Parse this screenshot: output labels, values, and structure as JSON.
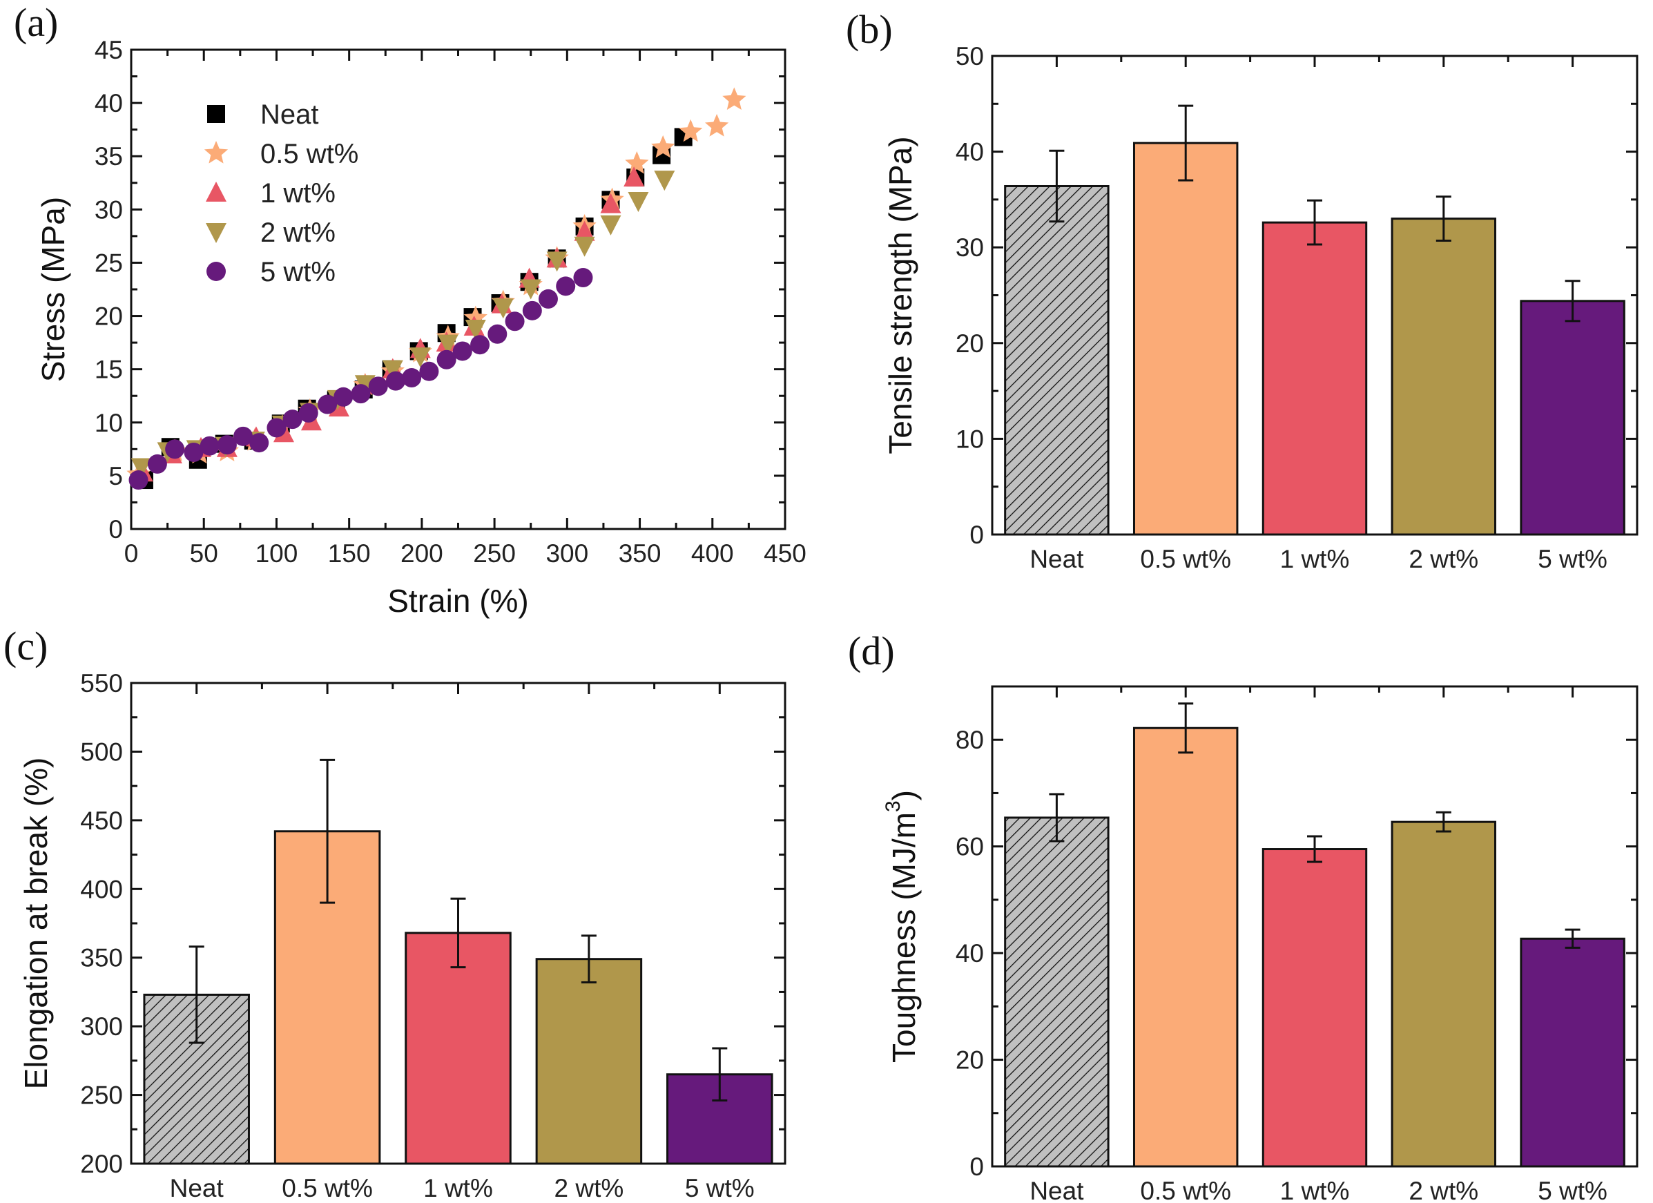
{
  "figure": {
    "colors": {
      "Neat": "#000000",
      "0.5 wt%": "#fbab77",
      "1 wt%": "#e85664",
      "2 wt%": "#b0974b",
      "5 wt%": "#661a7c",
      "neat_bar_fill": "#c0c0c0"
    }
  },
  "chart_data": [
    {
      "panel": "(a)",
      "type": "scatter",
      "title": "",
      "xlabel": "Strain (%)",
      "ylabel": "Stress (MPa)",
      "xlim": [
        0,
        450
      ],
      "ylim": [
        0,
        45
      ],
      "xticks": [
        0,
        50,
        100,
        150,
        200,
        250,
        300,
        350,
        400,
        450
      ],
      "yticks": [
        0,
        5,
        10,
        15,
        20,
        25,
        30,
        35,
        40,
        45
      ],
      "grid": false,
      "legend": "top-left",
      "series": [
        {
          "name": "Neat",
          "marker": "square",
          "x": [
            9,
            27,
            46,
            64,
            84,
            103,
            121,
            141,
            160,
            179,
            198,
            217,
            235,
            254,
            274,
            293,
            312,
            330,
            347,
            365,
            380
          ],
          "y": [
            4.6,
            7.7,
            6.5,
            8.0,
            8.3,
            9.9,
            11.3,
            12.1,
            13.1,
            15.0,
            16.7,
            18.4,
            19.9,
            21.2,
            23.2,
            25.4,
            28.4,
            30.9,
            33.0,
            35.1,
            36.8
          ]
        },
        {
          "name": "0.5 wt%",
          "marker": "star",
          "x": [
            5,
            30,
            47,
            66,
            85,
            104,
            123,
            142,
            161,
            180,
            199,
            218,
            237,
            256,
            275,
            293,
            312,
            331,
            348,
            366,
            385,
            403,
            415
          ],
          "y": [
            5.1,
            7.3,
            7.1,
            7.3,
            8.3,
            9.6,
            11.1,
            11.9,
            13.5,
            14.8,
            16.6,
            18.0,
            19.8,
            21.3,
            22.9,
            25.4,
            28.4,
            30.9,
            34.3,
            35.8,
            37.3,
            37.8,
            40.3
          ]
        },
        {
          "name": "1 wt%",
          "marker": "triangle-up",
          "x": [
            8,
            28,
            48,
            66,
            86,
            105,
            124,
            143,
            161,
            180,
            199,
            217,
            236,
            255,
            274,
            293,
            312,
            330,
            346
          ],
          "y": [
            5.3,
            7.0,
            7.6,
            7.6,
            8.6,
            9.0,
            10.1,
            11.4,
            13.5,
            15.0,
            16.9,
            17.5,
            19.0,
            21.1,
            23.5,
            25.4,
            27.9,
            30.5,
            33.0
          ]
        },
        {
          "name": "2 wt%",
          "marker": "triangle-down",
          "x": [
            7,
            25,
            45,
            65,
            85,
            104,
            123,
            142,
            161,
            180,
            199,
            218,
            237,
            256,
            275,
            293,
            312,
            330,
            349,
            367
          ],
          "y": [
            5.8,
            7.3,
            7.5,
            7.8,
            8.3,
            9.8,
            11.0,
            12.2,
            13.6,
            15.0,
            16.2,
            17.4,
            18.8,
            20.8,
            22.6,
            25.2,
            26.6,
            28.6,
            30.8,
            32.8
          ]
        },
        {
          "name": "5 wt%",
          "marker": "circle",
          "x": [
            5,
            18,
            30,
            43,
            54,
            66,
            77,
            88,
            100,
            111,
            122,
            135,
            146,
            158,
            170,
            182,
            193,
            205,
            217,
            228,
            240,
            252,
            264,
            276,
            287,
            299,
            311
          ],
          "y": [
            4.6,
            6.1,
            7.5,
            7.2,
            7.8,
            7.9,
            8.7,
            8.1,
            9.5,
            10.3,
            10.9,
            11.7,
            12.4,
            12.7,
            13.4,
            13.9,
            14.2,
            14.8,
            15.9,
            16.7,
            17.3,
            18.3,
            19.5,
            20.5,
            21.6,
            22.8,
            23.6
          ]
        }
      ]
    },
    {
      "panel": "(b)",
      "type": "bar",
      "xlabel": "",
      "ylabel": "Tensile strength (MPa)",
      "ylim": [
        0,
        50
      ],
      "yticks": [
        0,
        10,
        20,
        30,
        40,
        50
      ],
      "categories": [
        "Neat",
        "0.5 wt%",
        "1 wt%",
        "2 wt%",
        "5 wt%"
      ],
      "values": [
        36.4,
        40.9,
        32.6,
        33.0,
        24.4
      ],
      "errors": [
        3.7,
        3.9,
        2.3,
        2.3,
        2.1
      ]
    },
    {
      "panel": "(c)",
      "type": "bar",
      "xlabel": "",
      "ylabel": "Elongation at break (%)",
      "ylim": [
        200,
        550
      ],
      "yticks": [
        200,
        250,
        300,
        350,
        400,
        450,
        500,
        550
      ],
      "categories": [
        "Neat",
        "0.5 wt%",
        "1 wt%",
        "2 wt%",
        "5 wt%"
      ],
      "values": [
        323,
        442,
        368,
        349,
        265
      ],
      "errors": [
        35,
        52,
        25,
        17,
        19
      ]
    },
    {
      "panel": "(d)",
      "type": "bar",
      "xlabel": "",
      "ylabel": "Toughness (MJ/m",
      "ylabel_sup": "3",
      "ylabel_end": ")",
      "ylim": [
        0,
        90
      ],
      "yticks": [
        0,
        20,
        40,
        60,
        80
      ],
      "categories": [
        "Neat",
        "0.5 wt%",
        "1 wt%",
        "2 wt%",
        "5 wt%"
      ],
      "values": [
        65.4,
        82.2,
        59.5,
        64.6,
        42.7
      ],
      "errors": [
        4.4,
        4.6,
        2.4,
        1.8,
        1.7
      ]
    }
  ]
}
